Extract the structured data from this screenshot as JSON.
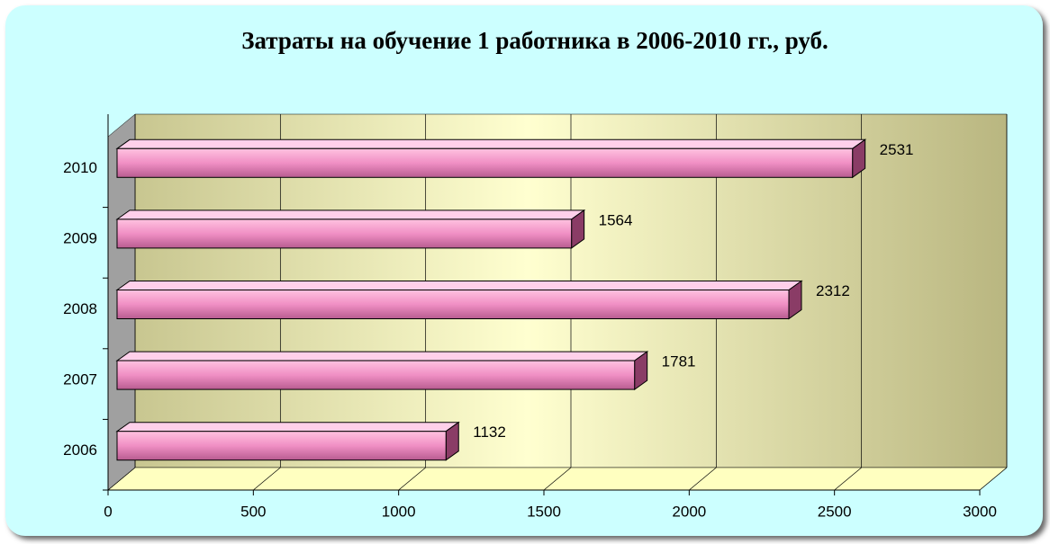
{
  "chart_data": {
    "type": "bar",
    "orientation": "horizontal",
    "title": "Затраты на обучение 1 работника в 2006-2010 гг., руб.",
    "categories": [
      "2006",
      "2007",
      "2008",
      "2009",
      "2010"
    ],
    "values": [
      1132,
      1781,
      2312,
      1564,
      2531
    ],
    "color": "#ff99cc",
    "xlim": [
      0,
      3000
    ],
    "xticks": [
      0,
      500,
      1000,
      1500,
      2000,
      2500,
      3000
    ],
    "grid": true
  }
}
